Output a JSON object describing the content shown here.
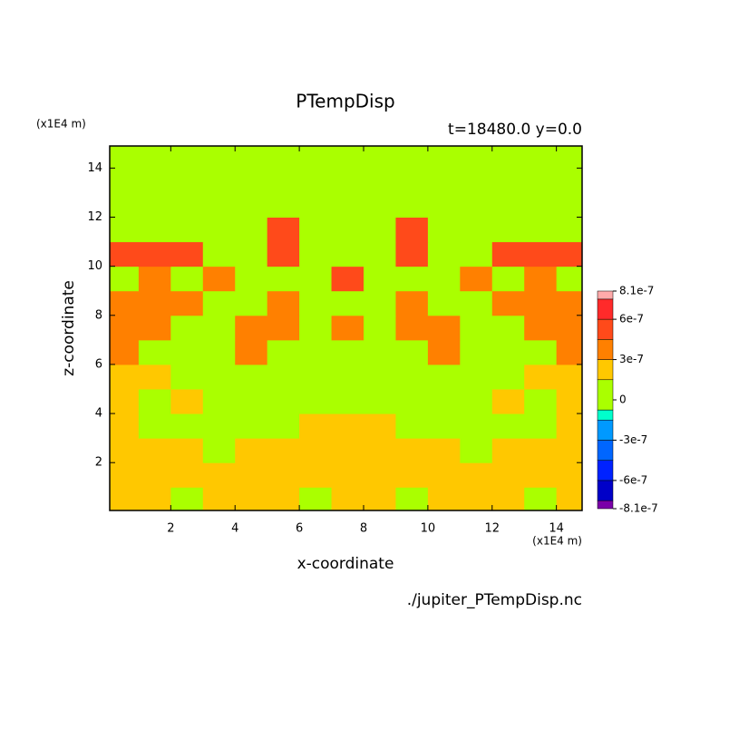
{
  "chart_data": {
    "type": "contour",
    "title": "PTempDisp",
    "subtitle": "t=18480.0 y=0.0",
    "x_label": "x-coordinate",
    "y_label": "z-coordinate",
    "x_unit": "(x1E4 m)",
    "y_unit": "(x1E4 m)",
    "footnote": "./jupiter_PTempDisp.nc",
    "xlim": [
      0.1,
      14.8
    ],
    "ylim": [
      0.05,
      14.9
    ],
    "xticks": [
      2,
      4,
      6,
      8,
      10,
      12,
      14
    ],
    "yticks": [
      2,
      4,
      6,
      8,
      10,
      12,
      14
    ],
    "x": [
      0.5,
      1.5,
      2.5,
      3.5,
      4.5,
      5.5,
      6.5,
      7.5,
      8.5,
      9.5,
      10.5,
      11.5,
      12.5,
      13.5,
      14.5
    ],
    "z": [
      0.5,
      1.5,
      2.5,
      3.5,
      4.5,
      5.5,
      6.5,
      7.5,
      8.5,
      9.5,
      10.5,
      11.5,
      12.5,
      13.5,
      14.5
    ],
    "values": [
      [
        2e-07,
        2e-07,
        0,
        2e-07,
        2e-07,
        2e-07,
        0,
        2e-07,
        2e-07,
        0,
        2e-07,
        2e-07,
        2e-07,
        0,
        2e-07
      ],
      [
        2e-07,
        2e-07,
        2e-07,
        2e-07,
        2e-07,
        2e-07,
        2e-07,
        2e-07,
        2e-07,
        2e-07,
        2e-07,
        2e-07,
        2e-07,
        2e-07,
        2e-07
      ],
      [
        2e-07,
        2e-07,
        2e-07,
        0,
        2e-07,
        2e-07,
        2e-07,
        2e-07,
        2e-07,
        2e-07,
        2e-07,
        0,
        2e-07,
        2e-07,
        2e-07
      ],
      [
        2e-07,
        0,
        0,
        0,
        0,
        0,
        2e-07,
        2e-07,
        2e-07,
        0,
        0,
        0,
        0,
        0,
        2e-07
      ],
      [
        2e-07,
        0,
        2e-07,
        0,
        0,
        0,
        0,
        0,
        0,
        0,
        0,
        0,
        2e-07,
        0,
        2e-07
      ],
      [
        2e-07,
        2e-07,
        0,
        0,
        0,
        0,
        0,
        0,
        0,
        0,
        0,
        0,
        0,
        2e-07,
        2e-07
      ],
      [
        4e-07,
        0,
        0,
        0,
        4e-07,
        0,
        0,
        0,
        0,
        0,
        4e-07,
        0,
        0,
        0,
        4e-07
      ],
      [
        4e-07,
        4e-07,
        0,
        0,
        4e-07,
        4e-07,
        0,
        4e-07,
        0,
        4e-07,
        4e-07,
        0,
        0,
        4e-07,
        4e-07
      ],
      [
        4e-07,
        4e-07,
        4e-07,
        0,
        0,
        4e-07,
        0,
        0,
        0,
        4e-07,
        0,
        0,
        4e-07,
        4e-07,
        4e-07
      ],
      [
        0,
        4e-07,
        0,
        4e-07,
        0,
        0,
        0,
        5e-07,
        0,
        0,
        0,
        4e-07,
        0,
        4e-07,
        0
      ],
      [
        5e-07,
        5e-07,
        5e-07,
        0,
        0,
        5e-07,
        0,
        0,
        0,
        5e-07,
        0,
        0,
        5e-07,
        5e-07,
        5e-07
      ],
      [
        0,
        0,
        0,
        0,
        0,
        5e-07,
        0,
        0,
        0,
        5e-07,
        0,
        0,
        0,
        0,
        0
      ],
      [
        0,
        0,
        0,
        0,
        0,
        0,
        0,
        0,
        0,
        0,
        0,
        0,
        0,
        0,
        0
      ],
      [
        0,
        0,
        0,
        0,
        0,
        0,
        0,
        0,
        0,
        0,
        0,
        0,
        0,
        0,
        0
      ],
      [
        0,
        0,
        0,
        0,
        0,
        0,
        0,
        0,
        0,
        0,
        0,
        0,
        0,
        0,
        0
      ]
    ],
    "levels": [
      -8.1e-07,
      -7.5e-07,
      -6e-07,
      -4.5e-07,
      -3e-07,
      -1.5e-07,
      -7.5e-08,
      1.5e-07,
      3e-07,
      4.5e-07,
      6e-07,
      7.5e-07,
      8.1e-07
    ],
    "colors": [
      "#7a00a8",
      "#0000c8",
      "#0022ff",
      "#0066ff",
      "#0099ff",
      "#00ffcc",
      "#aaff00",
      "#ffc800",
      "#ff8000",
      "#ff4a1a",
      "#ff2a2a",
      "#ffaaaa"
    ],
    "colorbar_ticks": [
      -8.1e-07,
      -6e-07,
      -3e-07,
      0,
      3e-07,
      6e-07,
      8.1e-07
    ]
  }
}
